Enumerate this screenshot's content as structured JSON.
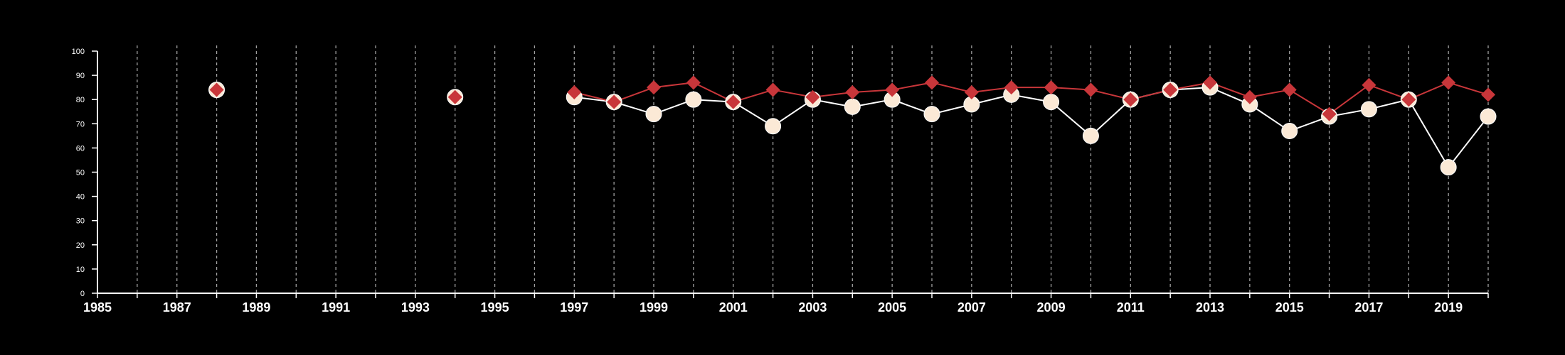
{
  "chart_data": {
    "type": "line",
    "title": "",
    "xlabel": "",
    "ylabel": "",
    "xlim": [
      1985,
      2020
    ],
    "ylim": [
      0,
      100
    ],
    "x_ticks": [
      1985,
      1987,
      1989,
      1991,
      1993,
      1995,
      1997,
      1999,
      2001,
      2003,
      2005,
      2007,
      2009,
      2011,
      2013,
      2015,
      2017,
      2019
    ],
    "x_tick_labels": [
      "1985",
      "1987",
      "1989",
      "1991",
      "1993",
      "1995",
      "1997",
      "1999",
      "2001",
      "2003",
      "2005",
      "2007",
      "2009",
      "2011",
      "2013",
      "2015",
      "2017",
      "2019"
    ],
    "y_ticks": [
      0,
      10,
      20,
      30,
      40,
      50,
      60,
      70,
      80,
      90,
      100
    ],
    "y_tick_labels": [
      "0",
      "10",
      "20",
      "30",
      "40",
      "50",
      "60",
      "70",
      "80",
      "90",
      "100"
    ],
    "grid": "vertical dashed lines at every year",
    "legend": "none",
    "series": [
      {
        "marker": "circle",
        "color": "#fbe9d6",
        "line_color": "#ffffff",
        "points": [
          [
            1988,
            84
          ],
          [
            1994,
            81
          ],
          [
            1997,
            81
          ],
          [
            1998,
            79
          ],
          [
            1999,
            74
          ],
          [
            2000,
            80
          ],
          [
            2001,
            79
          ],
          [
            2002,
            69
          ],
          [
            2003,
            80
          ],
          [
            2004,
            77
          ],
          [
            2005,
            80
          ],
          [
            2006,
            74
          ],
          [
            2007,
            78
          ],
          [
            2008,
            82
          ],
          [
            2009,
            79
          ],
          [
            2010,
            65
          ],
          [
            2011,
            80
          ],
          [
            2012,
            84
          ],
          [
            2013,
            85
          ],
          [
            2014,
            78
          ],
          [
            2015,
            67
          ],
          [
            2016,
            73
          ],
          [
            2017,
            76
          ],
          [
            2018,
            80
          ],
          [
            2019,
            52
          ],
          [
            2020,
            73
          ]
        ]
      },
      {
        "marker": "diamond",
        "color": "#c8363a",
        "line_color": "#c8363a",
        "points": [
          [
            1988,
            84
          ],
          [
            1994,
            81
          ],
          [
            1997,
            83
          ],
          [
            1998,
            79
          ],
          [
            1999,
            85
          ],
          [
            2000,
            87
          ],
          [
            2001,
            79
          ],
          [
            2002,
            84
          ],
          [
            2003,
            81
          ],
          [
            2004,
            83
          ],
          [
            2005,
            84
          ],
          [
            2006,
            87
          ],
          [
            2007,
            83
          ],
          [
            2008,
            85
          ],
          [
            2009,
            85
          ],
          [
            2010,
            84
          ],
          [
            2011,
            80
          ],
          [
            2012,
            84
          ],
          [
            2013,
            87
          ],
          [
            2014,
            81
          ],
          [
            2015,
            84
          ],
          [
            2016,
            74
          ],
          [
            2017,
            86
          ],
          [
            2018,
            80
          ],
          [
            2019,
            87
          ],
          [
            2020,
            82
          ]
        ]
      }
    ]
  }
}
